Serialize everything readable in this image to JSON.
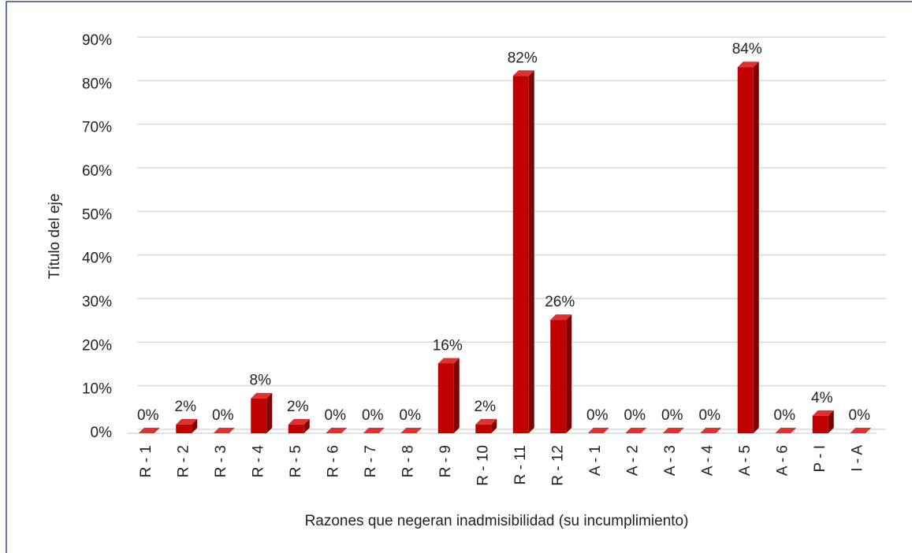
{
  "chart_data": {
    "type": "bar",
    "x_label": "Razones que negeran  inadmisibilidad (su incumplimiento)",
    "y_label": "Título del eje",
    "categories": [
      "R - 1",
      "R - 2",
      "R - 3",
      "R - 4",
      "R - 5",
      "R - 6",
      "R - 7",
      "R - 8",
      "R - 9",
      "R - 10",
      "R - 11",
      "R - 12",
      "A - 1",
      "A - 2",
      "A - 3",
      "A - 4",
      "A - 5",
      "A - 6",
      "P - I",
      "I - A"
    ],
    "values": [
      0,
      2,
      0,
      8,
      2,
      0,
      0,
      0,
      16,
      2,
      82,
      26,
      0,
      0,
      0,
      0,
      84,
      0,
      4,
      0
    ],
    "value_labels": [
      "0%",
      "2%",
      "0%",
      "8%",
      "2%",
      "0%",
      "0%",
      "0%",
      "16%",
      "2%",
      "82%",
      "26%",
      "0%",
      "0%",
      "0%",
      "0%",
      "84%",
      "0%",
      "4%",
      "0%"
    ],
    "color": "#c00000",
    "ylim": [
      0,
      90
    ],
    "yticks": [
      {
        "value": 0,
        "label": "0%"
      },
      {
        "value": 10,
        "label": "10%"
      },
      {
        "value": 20,
        "label": "20%"
      },
      {
        "value": 30,
        "label": "30%"
      },
      {
        "value": 40,
        "label": "40%"
      },
      {
        "value": 50,
        "label": "50%"
      },
      {
        "value": 60,
        "label": "60%"
      },
      {
        "value": 70,
        "label": "70%"
      },
      {
        "value": 80,
        "label": "80%"
      },
      {
        "value": 90,
        "label": "90%"
      }
    ],
    "grid": true
  }
}
